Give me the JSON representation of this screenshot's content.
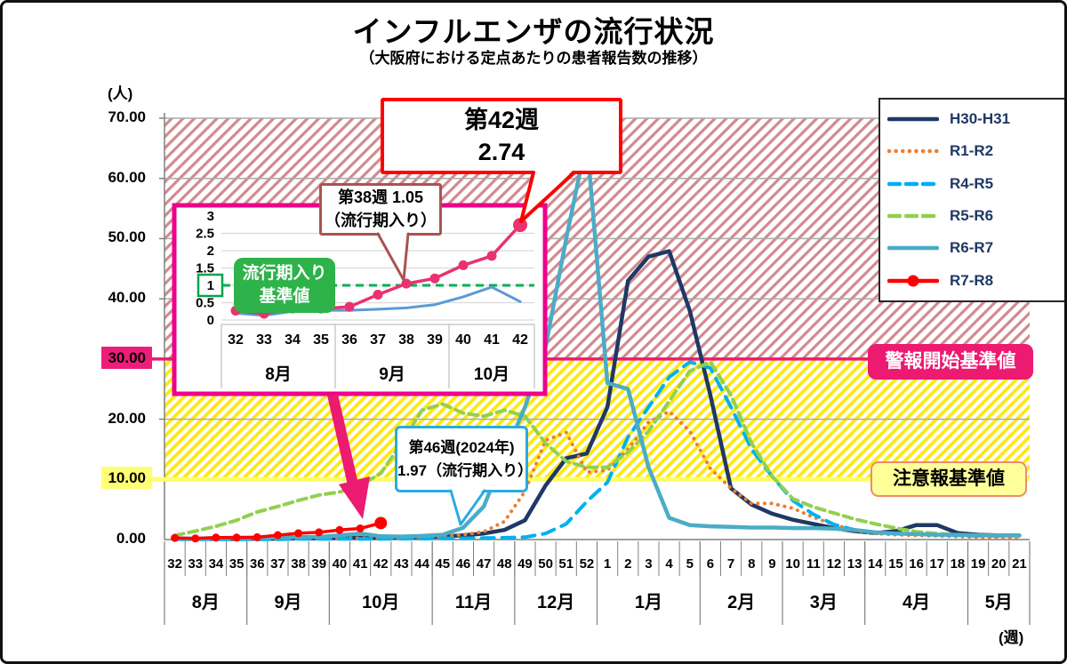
{
  "title": "インフルエンザの流行状況",
  "subtitle": "（大阪府における定点あたりの患者報告数の推移）",
  "units": {
    "y": "(人)",
    "x": "(週)"
  },
  "y_ticks": [
    {
      "label": "70.00",
      "value": 70,
      "highlight": "none"
    },
    {
      "label": "60.00",
      "value": 60,
      "highlight": "none"
    },
    {
      "label": "50.00",
      "value": 50,
      "highlight": "none"
    },
    {
      "label": "40.00",
      "value": 40,
      "highlight": "none"
    },
    {
      "label": "30.00",
      "value": 30,
      "highlight": "pink"
    },
    {
      "label": "20.00",
      "value": 20,
      "highlight": "none"
    },
    {
      "label": "10.00",
      "value": 10,
      "highlight": "yellow"
    },
    {
      "label": "0.00",
      "value": 0,
      "highlight": "none"
    }
  ],
  "threshold_labels": {
    "alert": "警報開始基準値",
    "caution": "注意報基準値"
  },
  "thresholds": {
    "alert_value": 30,
    "caution_value": 10
  },
  "legend": [
    {
      "label": "H30-H31",
      "color": "#1F3864",
      "style": "solid",
      "marker": false
    },
    {
      "label": "R1-R2",
      "color": "#ED7D31",
      "style": "dotted",
      "marker": false
    },
    {
      "label": "R4-R5",
      "color": "#00B0F0",
      "style": "dashed",
      "marker": false
    },
    {
      "label": "R5-R6",
      "color": "#92D050",
      "style": "dashed",
      "marker": false
    },
    {
      "label": "R6-R7",
      "color": "#4BACC6",
      "style": "solid",
      "marker": false
    },
    {
      "label": "R7-R8",
      "color": "#FF0000",
      "style": "solid",
      "marker": true
    }
  ],
  "callouts": {
    "week42": {
      "line1": "第42週",
      "line2": "2.74"
    },
    "week38": {
      "line1": "第38週 1.05",
      "line2": "（流行期入り）"
    },
    "week46": {
      "line1": "第46週(2024年)",
      "line2": "1.97（流行期入り）"
    }
  },
  "inset": {
    "baseline_label_line1": "流行期入り",
    "baseline_label_line2": "基準値",
    "baseline_value": 1,
    "y_ticks": [
      "3",
      "2.5",
      "2",
      "1.5",
      "1",
      "0.5",
      "0"
    ],
    "weeks": [
      "32",
      "33",
      "34",
      "35",
      "36",
      "37",
      "38",
      "39",
      "40",
      "41",
      "42"
    ],
    "months": [
      {
        "label": "8月",
        "weeks": 4
      },
      {
        "label": "9月",
        "weeks": 4
      },
      {
        "label": "10月",
        "weeks": 3
      }
    ]
  },
  "chart_data": [
    {
      "type": "line",
      "title": "インフルエンザの流行状況（大阪府・定点あたり患者報告数）",
      "xlabel": "週",
      "ylabel": "人",
      "ylim": [
        0,
        70
      ],
      "grid": true,
      "legend_position": "top-right",
      "categories": [
        "32",
        "33",
        "34",
        "35",
        "36",
        "37",
        "38",
        "39",
        "40",
        "41",
        "42",
        "43",
        "44",
        "45",
        "46",
        "47",
        "48",
        "49",
        "50",
        "51",
        "52",
        "1",
        "2",
        "3",
        "4",
        "5",
        "6",
        "7",
        "8",
        "9",
        "10",
        "11",
        "12",
        "13",
        "14",
        "15",
        "16",
        "17",
        "18",
        "19",
        "20",
        "21"
      ],
      "months": [
        {
          "label": "8月",
          "weeks": 4
        },
        {
          "label": "9月",
          "weeks": 4
        },
        {
          "label": "10月",
          "weeks": 5
        },
        {
          "label": "11月",
          "weeks": 4
        },
        {
          "label": "12月",
          "weeks": 4
        },
        {
          "label": "1月",
          "weeks": 5
        },
        {
          "label": "2月",
          "weeks": 4
        },
        {
          "label": "3月",
          "weeks": 4
        },
        {
          "label": "4月",
          "weeks": 5
        },
        {
          "label": "5月",
          "weeks": 3
        }
      ],
      "series": [
        {
          "name": "H30-H31",
          "color": "#1F3864",
          "dash": "solid",
          "values": [
            0.1,
            0.1,
            0.1,
            0.1,
            0.15,
            0.15,
            0.2,
            0.2,
            0.25,
            0.3,
            0.3,
            0.35,
            0.4,
            0.5,
            0.7,
            1.0,
            1.6,
            3.2,
            9.0,
            13.5,
            14.3,
            22,
            43,
            47,
            47.9,
            38,
            24,
            8.5,
            5.8,
            4.3,
            3.3,
            2.6,
            1.9,
            1.4,
            1.1,
            1.4,
            2.4,
            2.4,
            1.1,
            0.8,
            0.7,
            0.7
          ]
        },
        {
          "name": "R1-R2",
          "color": "#ED7D31",
          "dash": "dotted",
          "values": [
            0.1,
            0.1,
            0.1,
            0.1,
            0.1,
            0.15,
            0.15,
            0.2,
            0.2,
            0.25,
            0.3,
            0.3,
            0.4,
            0.5,
            0.8,
            1.3,
            3.0,
            8.0,
            16.5,
            17.8,
            11.2,
            11.5,
            15,
            19.5,
            21.3,
            18,
            11.8,
            8.5,
            6.0,
            6.0,
            5.2,
            3.7,
            2.5,
            1.5,
            1.0,
            0.8,
            0.7,
            0.6,
            0.5,
            0.4,
            0.3,
            0.3
          ]
        },
        {
          "name": "R4-R5",
          "color": "#00B0F0",
          "dash": "dashed",
          "values": [
            0.05,
            0.05,
            0.05,
            0.05,
            0.05,
            0.05,
            0.1,
            0.1,
            0.1,
            0.1,
            0.1,
            0.15,
            0.15,
            0.2,
            0.2,
            0.25,
            0.3,
            0.4,
            1.0,
            2.6,
            6.3,
            9.5,
            17,
            22,
            27,
            29.5,
            28.5,
            22,
            15,
            10.5,
            6.5,
            4.2,
            2.5,
            1.6,
            1.2,
            1.0,
            0.9,
            0.8,
            0.7,
            0.6,
            0.6,
            0.7
          ]
        },
        {
          "name": "R5-R6",
          "color": "#92D050",
          "dash": "dashed",
          "values": [
            0.7,
            1.4,
            2.2,
            3.2,
            4.6,
            5.5,
            6.5,
            7.4,
            7.9,
            9.0,
            11,
            16,
            21.5,
            22.5,
            21,
            20.5,
            21.5,
            20.5,
            16,
            13,
            12,
            12,
            14.5,
            18,
            23,
            28,
            29.5,
            24,
            16,
            10.5,
            6.8,
            5.4,
            4.4,
            3.4,
            2.6,
            1.9,
            1.3,
            1.0,
            0.8,
            0.7,
            0.6,
            0.6
          ]
        },
        {
          "name": "R6-R7",
          "color": "#4BACC6",
          "dash": "solid",
          "values": [
            0.2,
            0.15,
            0.25,
            0.3,
            0.3,
            0.35,
            0.4,
            0.45,
            0.7,
            1.0,
            0.55,
            0.5,
            0.6,
            0.8,
            1.97,
            5.5,
            14,
            22,
            32,
            50,
            66.5,
            26,
            25,
            12,
            3.6,
            2.4,
            2.2,
            2.1,
            2.0,
            2.0,
            1.9,
            1.9,
            1.8,
            1.6,
            1.2,
            1.0,
            0.9,
            0.8,
            0.8,
            0.7,
            0.7,
            0.7
          ]
        },
        {
          "name": "R7-R8",
          "color": "#FF0000",
          "dash": "solid",
          "markers": true,
          "values": [
            0.27,
            0.18,
            0.33,
            0.33,
            0.38,
            0.73,
            1.05,
            1.2,
            1.58,
            1.85,
            2.74,
            null,
            null,
            null,
            null,
            null,
            null,
            null,
            null,
            null,
            null,
            null,
            null,
            null,
            null,
            null,
            null,
            null,
            null,
            null,
            null,
            null,
            null,
            null,
            null,
            null,
            null,
            null,
            null,
            null,
            null,
            null
          ]
        }
      ]
    },
    {
      "type": "line",
      "title": "第32〜42週拡大（流行期入り基準値=1.0）",
      "ylim": [
        0,
        3
      ],
      "categories": [
        "32",
        "33",
        "34",
        "35",
        "36",
        "37",
        "38",
        "39",
        "40",
        "41",
        "42"
      ],
      "baseline": 1.0,
      "series": [
        {
          "name": "R6-R7",
          "color": "#5B9BD5",
          "dash": "solid",
          "values": [
            0.2,
            0.13,
            0.25,
            0.28,
            0.28,
            0.31,
            0.35,
            0.44,
            0.67,
            0.95,
            0.53
          ]
        },
        {
          "name": "R7-R8",
          "color": "#E8336E",
          "dash": "solid",
          "markers": true,
          "values": [
            0.27,
            0.18,
            0.33,
            0.33,
            0.38,
            0.73,
            1.05,
            1.2,
            1.58,
            1.85,
            2.74
          ]
        }
      ]
    }
  ]
}
